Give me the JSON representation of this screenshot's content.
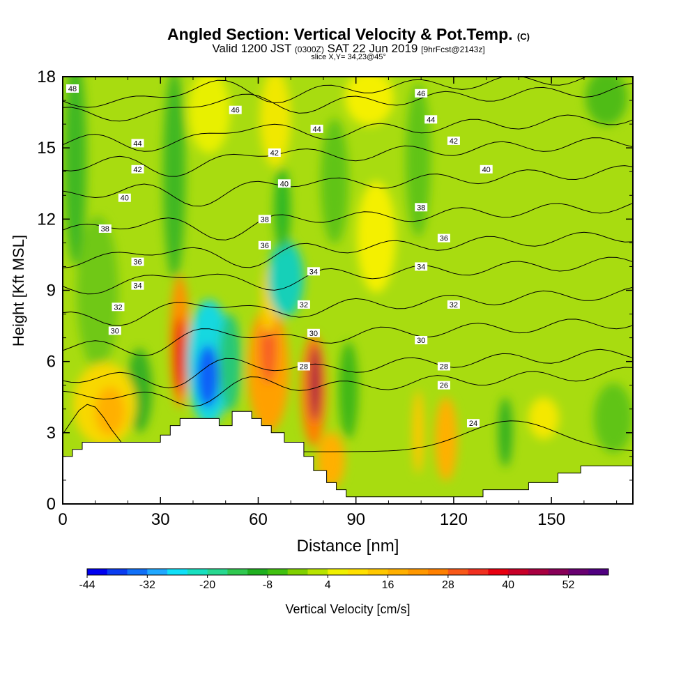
{
  "title": {
    "main": "Angled Section: Vertical Velocity & Pot.Temp.",
    "main_units": "(C)",
    "valid_prefix": "Valid 1200 JST",
    "valid_utc": "(0300Z)",
    "valid_date": "SAT 22 Jun 2019",
    "forecast": "[9hrFcst@2143z]",
    "slice": "slice X,Y= 34,23@45°"
  },
  "colorbar": {
    "label": "Vertical Velocity [cm/s]",
    "tick_labels": [
      "-44",
      "-32",
      "-20",
      "-8",
      "4",
      "16",
      "28",
      "40",
      "52"
    ],
    "colors": [
      "#0000f0",
      "#0a3cf0",
      "#1070f8",
      "#20a8ff",
      "#10e0f8",
      "#18e0c0",
      "#28d890",
      "#30c850",
      "#20b020",
      "#40c010",
      "#80d000",
      "#b8e400",
      "#f0f000",
      "#ffe000",
      "#ffc800",
      "#ffb000",
      "#ff9800",
      "#ff8000",
      "#f85818",
      "#f03020",
      "#e80010",
      "#c80028",
      "#a80040",
      "#880058",
      "#680070",
      "#500080"
    ]
  },
  "chart_data": {
    "type": "heatmap",
    "xlabel": "Distance [nm]",
    "ylabel": "Height [Kft MSL]",
    "xlim": [
      0,
      175
    ],
    "ylim": [
      0,
      18
    ],
    "x_ticks": [
      0,
      30,
      60,
      90,
      120,
      150
    ],
    "y_ticks": [
      0,
      3,
      6,
      9,
      12,
      15,
      18
    ],
    "grid": false,
    "terrain_kft": [
      [
        0,
        2
      ],
      [
        3,
        2
      ],
      [
        3,
        2.3
      ],
      [
        6,
        2.3
      ],
      [
        6,
        2.6
      ],
      [
        30,
        2.6
      ],
      [
        30,
        2.9
      ],
      [
        33,
        2.9
      ],
      [
        33,
        3.3
      ],
      [
        36,
        3.3
      ],
      [
        36,
        3.6
      ],
      [
        48,
        3.6
      ],
      [
        48,
        3.3
      ],
      [
        52,
        3.3
      ],
      [
        52,
        3.9
      ],
      [
        58,
        3.9
      ],
      [
        58,
        3.6
      ],
      [
        61,
        3.6
      ],
      [
        61,
        3.3
      ],
      [
        64,
        3.3
      ],
      [
        64,
        3
      ],
      [
        68,
        3
      ],
      [
        68,
        2.6
      ],
      [
        74,
        2.6
      ],
      [
        74,
        2
      ],
      [
        77,
        2
      ],
      [
        77,
        1.4
      ],
      [
        81,
        1.4
      ],
      [
        81,
        0.9
      ],
      [
        84,
        0.9
      ],
      [
        84,
        0.6
      ],
      [
        87,
        0.6
      ],
      [
        87,
        0.3
      ],
      [
        129,
        0.3
      ],
      [
        129,
        0.6
      ],
      [
        143,
        0.6
      ],
      [
        143,
        0.9
      ],
      [
        152,
        0.9
      ],
      [
        152,
        1.3
      ],
      [
        159,
        1.3
      ],
      [
        159,
        1.6
      ],
      [
        175,
        1.6
      ]
    ],
    "vertical_velocity_features_cm_s": [
      {
        "x": 36,
        "z": 6.5,
        "value": 44
      },
      {
        "x": 42,
        "z": 5.5,
        "value": -40
      },
      {
        "x": 45,
        "z": 5.0,
        "value": -32
      },
      {
        "x": 64,
        "z": 5.5,
        "value": 28
      },
      {
        "x": 67,
        "z": 10.0,
        "value": -22
      },
      {
        "x": 78,
        "z": 4.8,
        "value": 48
      },
      {
        "x": 93,
        "z": 11.5,
        "value": 6
      },
      {
        "x": 80,
        "z": 17.0,
        "value": 6
      },
      {
        "x": 20,
        "z": 4.5,
        "value": 12
      },
      {
        "x": 116,
        "z": 3.5,
        "value": 12
      },
      {
        "x": 4,
        "z": 15.0,
        "value": -8
      }
    ],
    "isentropes": [
      {
        "theta": "24",
        "label_at": [
          126,
          3.4
        ]
      },
      {
        "theta": "26",
        "label_at": [
          117,
          5.0
        ]
      },
      {
        "theta": "28",
        "label_at": [
          74,
          5.8
        ],
        "label_at_2": [
          117,
          5.8
        ]
      },
      {
        "theta": "30",
        "label_at": [
          16,
          7.3
        ],
        "label_at_2": [
          77,
          7.2
        ],
        "label_at_3": [
          110,
          6.9
        ]
      },
      {
        "theta": "32",
        "label_at": [
          17,
          8.3
        ],
        "label_at_2": [
          74,
          8.4
        ],
        "label_at_3": [
          120,
          8.4
        ]
      },
      {
        "theta": "34",
        "label_at": [
          23,
          9.2
        ],
        "label_at_2": [
          77,
          9.8
        ],
        "label_at_3": [
          110,
          10.0
        ]
      },
      {
        "theta": "36",
        "label_at": [
          23,
          10.2
        ],
        "label_at_2": [
          62,
          10.9
        ],
        "label_at_3": [
          117,
          11.2
        ]
      },
      {
        "theta": "38",
        "label_at": [
          13,
          11.6
        ],
        "label_at_2": [
          62,
          12.0
        ],
        "label_at_3": [
          110,
          12.5
        ]
      },
      {
        "theta": "40",
        "label_at": [
          19,
          12.9
        ],
        "label_at_2": [
          68,
          13.5
        ],
        "label_at_3": [
          130,
          14.1
        ]
      },
      {
        "theta": "42",
        "label_at": [
          23,
          14.1
        ],
        "label_at_2": [
          65,
          14.8
        ],
        "label_at_3": [
          120,
          15.3
        ]
      },
      {
        "theta": "44",
        "label_at": [
          23,
          15.2
        ],
        "label_at_2": [
          78,
          15.8
        ],
        "label_at_3": [
          113,
          16.2
        ]
      },
      {
        "theta": "46",
        "label_at": [
          53,
          16.6
        ],
        "label_at_2": [
          110,
          17.3
        ]
      },
      {
        "theta": "48",
        "label_at": [
          3,
          17.5
        ]
      }
    ]
  }
}
